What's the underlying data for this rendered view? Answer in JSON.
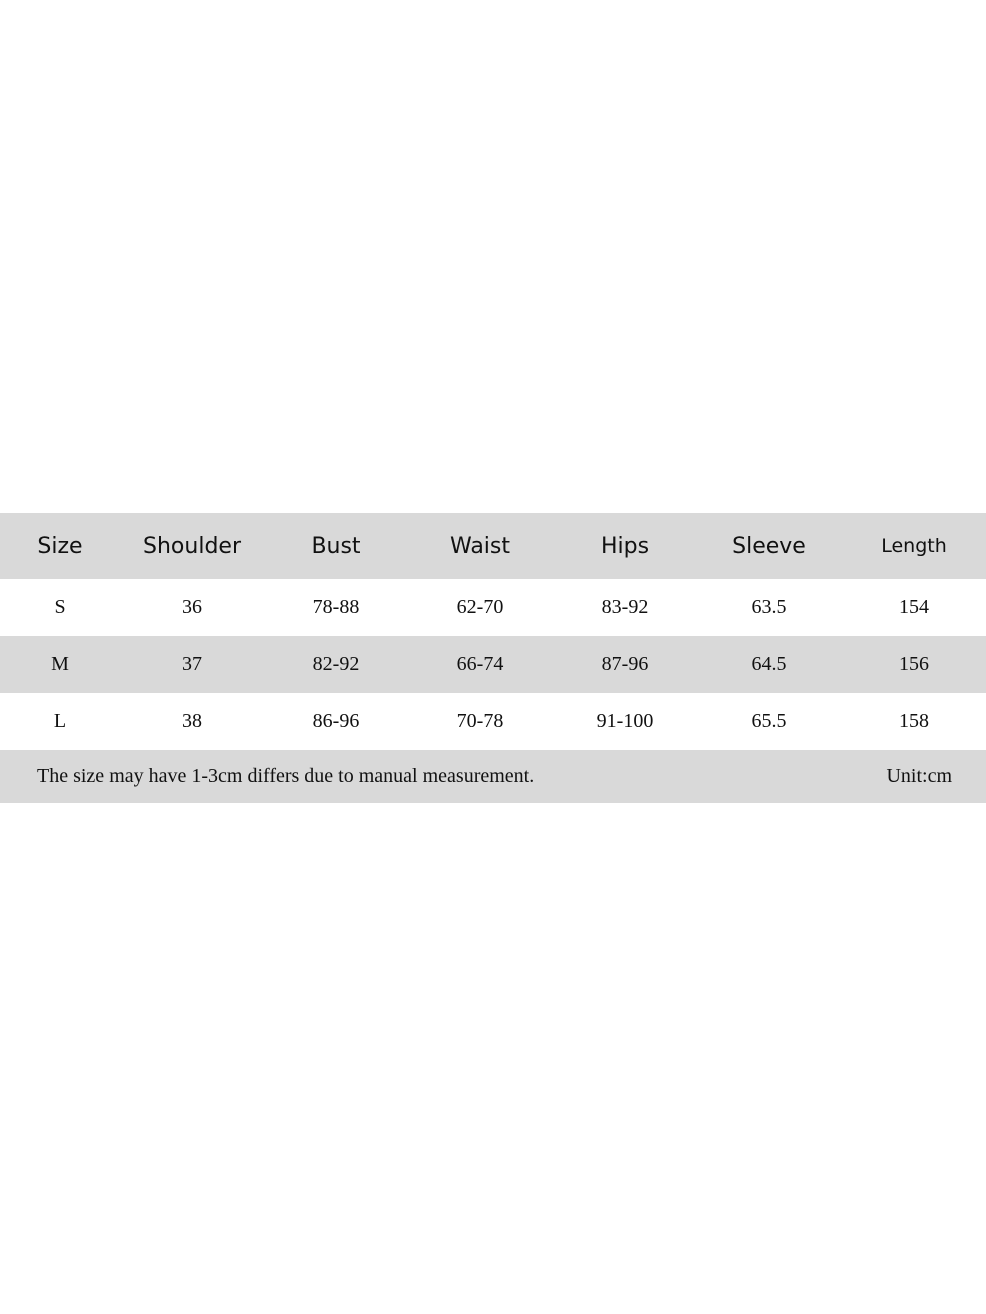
{
  "table": {
    "header": [
      "Size",
      "Shoulder",
      "Bust",
      "Waist",
      "Hips",
      "Sleeve",
      "Length"
    ],
    "rows": [
      [
        "S",
        "36",
        "78-88",
        "62-70",
        "83-92",
        "63.5",
        "154"
      ],
      [
        "M",
        "37",
        "82-92",
        "66-74",
        "87-96",
        "64.5",
        "156"
      ],
      [
        "L",
        "38",
        "86-96",
        "70-78",
        "91-100",
        "65.5",
        "158"
      ]
    ],
    "note": "The size may have 1-3cm differs due to manual measurement.",
    "unit": "Unit:cm"
  }
}
